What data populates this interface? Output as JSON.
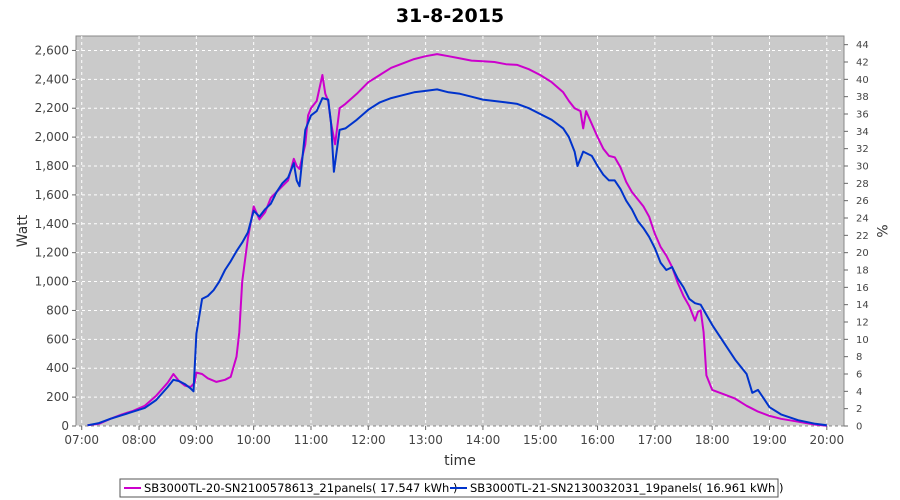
{
  "chart_data": {
    "type": "line",
    "title": "31-8-2015",
    "xlabel": "time",
    "ylabel": "Watt",
    "y2label": "%",
    "xlim": [
      6.9,
      20.3
    ],
    "ylim": [
      0,
      2700
    ],
    "y2lim": [
      0,
      45
    ],
    "x_ticks": [
      {
        "v": 7,
        "label": "07:00"
      },
      {
        "v": 8,
        "label": "08:00"
      },
      {
        "v": 9,
        "label": "09:00"
      },
      {
        "v": 10,
        "label": "10:00"
      },
      {
        "v": 11,
        "label": "11:00"
      },
      {
        "v": 12,
        "label": "12:00"
      },
      {
        "v": 13,
        "label": "13:00"
      },
      {
        "v": 14,
        "label": "14:00"
      },
      {
        "v": 15,
        "label": "15:00"
      },
      {
        "v": 16,
        "label": "16:00"
      },
      {
        "v": 17,
        "label": "17:00"
      },
      {
        "v": 18,
        "label": "18:00"
      },
      {
        "v": 19,
        "label": "19:00"
      },
      {
        "v": 20,
        "label": "20:00"
      }
    ],
    "y_ticks": [
      {
        "v": 0,
        "label": "0"
      },
      {
        "v": 200,
        "label": "200"
      },
      {
        "v": 400,
        "label": "400"
      },
      {
        "v": 600,
        "label": "600"
      },
      {
        "v": 800,
        "label": "800"
      },
      {
        "v": 1000,
        "label": "1,000"
      },
      {
        "v": 1200,
        "label": "1,200"
      },
      {
        "v": 1400,
        "label": "1,400"
      },
      {
        "v": 1600,
        "label": "1,600"
      },
      {
        "v": 1800,
        "label": "1,800"
      },
      {
        "v": 2000,
        "label": "2,000"
      },
      {
        "v": 2200,
        "label": "2,200"
      },
      {
        "v": 2400,
        "label": "2,400"
      },
      {
        "v": 2600,
        "label": "2,600"
      }
    ],
    "y2_ticks": [
      "0",
      "2",
      "4",
      "6",
      "8",
      "10",
      "12",
      "14",
      "16",
      "18",
      "20",
      "22",
      "24",
      "26",
      "28",
      "30",
      "32",
      "34",
      "36",
      "38",
      "40",
      "42",
      "44"
    ],
    "grid": true,
    "legend_position": "bottom",
    "series": [
      {
        "name": "SB3000TL-20-SN2100578613_21panels( 17.547 kWh )",
        "color": "#cc00cc",
        "points": [
          [
            7.1,
            5
          ],
          [
            7.3,
            15
          ],
          [
            7.5,
            50
          ],
          [
            7.7,
            80
          ],
          [
            7.9,
            105
          ],
          [
            8.1,
            140
          ],
          [
            8.3,
            210
          ],
          [
            8.5,
            300
          ],
          [
            8.6,
            360
          ],
          [
            8.7,
            310
          ],
          [
            8.8,
            280
          ],
          [
            8.9,
            270
          ],
          [
            8.97,
            300
          ],
          [
            9.0,
            370
          ],
          [
            9.1,
            360
          ],
          [
            9.2,
            330
          ],
          [
            9.35,
            305
          ],
          [
            9.5,
            320
          ],
          [
            9.6,
            340
          ],
          [
            9.7,
            480
          ],
          [
            9.75,
            650
          ],
          [
            9.8,
            1000
          ],
          [
            9.9,
            1300
          ],
          [
            10.0,
            1520
          ],
          [
            10.1,
            1430
          ],
          [
            10.2,
            1480
          ],
          [
            10.3,
            1580
          ],
          [
            10.4,
            1620
          ],
          [
            10.5,
            1660
          ],
          [
            10.6,
            1700
          ],
          [
            10.7,
            1850
          ],
          [
            10.75,
            1800
          ],
          [
            10.8,
            1780
          ],
          [
            10.9,
            1950
          ],
          [
            10.95,
            2150
          ],
          [
            11.0,
            2200
          ],
          [
            11.1,
            2250
          ],
          [
            11.2,
            2430
          ],
          [
            11.25,
            2300
          ],
          [
            11.3,
            2250
          ],
          [
            11.35,
            2100
          ],
          [
            11.42,
            1950
          ],
          [
            11.5,
            2200
          ],
          [
            11.6,
            2230
          ],
          [
            11.8,
            2300
          ],
          [
            12.0,
            2380
          ],
          [
            12.2,
            2430
          ],
          [
            12.4,
            2480
          ],
          [
            12.6,
            2510
          ],
          [
            12.8,
            2540
          ],
          [
            13.0,
            2560
          ],
          [
            13.2,
            2575
          ],
          [
            13.4,
            2560
          ],
          [
            13.6,
            2545
          ],
          [
            13.8,
            2530
          ],
          [
            14.0,
            2525
          ],
          [
            14.2,
            2520
          ],
          [
            14.4,
            2505
          ],
          [
            14.6,
            2500
          ],
          [
            14.8,
            2470
          ],
          [
            15.0,
            2430
          ],
          [
            15.2,
            2380
          ],
          [
            15.4,
            2310
          ],
          [
            15.5,
            2250
          ],
          [
            15.6,
            2200
          ],
          [
            15.7,
            2180
          ],
          [
            15.75,
            2060
          ],
          [
            15.8,
            2180
          ],
          [
            16.0,
            2000
          ],
          [
            16.1,
            1920
          ],
          [
            16.2,
            1870
          ],
          [
            16.3,
            1860
          ],
          [
            16.4,
            1790
          ],
          [
            16.5,
            1690
          ],
          [
            16.6,
            1620
          ],
          [
            16.7,
            1570
          ],
          [
            16.8,
            1520
          ],
          [
            16.9,
            1450
          ],
          [
            17.0,
            1330
          ],
          [
            17.1,
            1240
          ],
          [
            17.2,
            1180
          ],
          [
            17.3,
            1100
          ],
          [
            17.4,
            990
          ],
          [
            17.5,
            900
          ],
          [
            17.6,
            830
          ],
          [
            17.7,
            730
          ],
          [
            17.75,
            790
          ],
          [
            17.8,
            800
          ],
          [
            17.85,
            650
          ],
          [
            17.9,
            350
          ],
          [
            18.0,
            250
          ],
          [
            18.2,
            220
          ],
          [
            18.4,
            190
          ],
          [
            18.6,
            140
          ],
          [
            18.7,
            120
          ],
          [
            18.8,
            100
          ],
          [
            19.0,
            70
          ],
          [
            19.2,
            50
          ],
          [
            19.5,
            30
          ],
          [
            19.8,
            10
          ],
          [
            20.0,
            2
          ]
        ]
      },
      {
        "name": "SB3000TL-21-SN2130032031_19panels( 16.961 kWh )",
        "color": "#0033cc",
        "points": [
          [
            7.1,
            5
          ],
          [
            7.3,
            20
          ],
          [
            7.5,
            50
          ],
          [
            7.7,
            75
          ],
          [
            7.9,
            100
          ],
          [
            8.1,
            125
          ],
          [
            8.3,
            180
          ],
          [
            8.5,
            270
          ],
          [
            8.6,
            320
          ],
          [
            8.7,
            310
          ],
          [
            8.8,
            290
          ],
          [
            8.9,
            260
          ],
          [
            8.95,
            240
          ],
          [
            9.0,
            640
          ],
          [
            9.1,
            880
          ],
          [
            9.2,
            900
          ],
          [
            9.3,
            940
          ],
          [
            9.4,
            1000
          ],
          [
            9.5,
            1080
          ],
          [
            9.6,
            1140
          ],
          [
            9.7,
            1210
          ],
          [
            9.8,
            1270
          ],
          [
            9.9,
            1340
          ],
          [
            10.0,
            1490
          ],
          [
            10.1,
            1450
          ],
          [
            10.2,
            1500
          ],
          [
            10.3,
            1540
          ],
          [
            10.4,
            1620
          ],
          [
            10.5,
            1680
          ],
          [
            10.6,
            1720
          ],
          [
            10.7,
            1820
          ],
          [
            10.75,
            1700
          ],
          [
            10.8,
            1660
          ],
          [
            10.9,
            2050
          ],
          [
            11.0,
            2150
          ],
          [
            11.1,
            2180
          ],
          [
            11.2,
            2270
          ],
          [
            11.3,
            2260
          ],
          [
            11.35,
            2100
          ],
          [
            11.4,
            1760
          ],
          [
            11.5,
            2050
          ],
          [
            11.6,
            2060
          ],
          [
            11.8,
            2120
          ],
          [
            12.0,
            2190
          ],
          [
            12.2,
            2240
          ],
          [
            12.4,
            2270
          ],
          [
            12.6,
            2290
          ],
          [
            12.8,
            2310
          ],
          [
            13.0,
            2320
          ],
          [
            13.2,
            2330
          ],
          [
            13.4,
            2310
          ],
          [
            13.6,
            2300
          ],
          [
            13.8,
            2280
          ],
          [
            14.0,
            2260
          ],
          [
            14.2,
            2250
          ],
          [
            14.4,
            2240
          ],
          [
            14.6,
            2230
          ],
          [
            14.8,
            2200
          ],
          [
            15.0,
            2160
          ],
          [
            15.2,
            2120
          ],
          [
            15.4,
            2060
          ],
          [
            15.5,
            2000
          ],
          [
            15.6,
            1900
          ],
          [
            15.65,
            1800
          ],
          [
            15.75,
            1900
          ],
          [
            15.9,
            1870
          ],
          [
            16.0,
            1800
          ],
          [
            16.1,
            1740
          ],
          [
            16.2,
            1700
          ],
          [
            16.3,
            1700
          ],
          [
            16.4,
            1640
          ],
          [
            16.5,
            1560
          ],
          [
            16.6,
            1500
          ],
          [
            16.7,
            1420
          ],
          [
            16.8,
            1370
          ],
          [
            16.9,
            1310
          ],
          [
            17.0,
            1230
          ],
          [
            17.1,
            1130
          ],
          [
            17.2,
            1080
          ],
          [
            17.3,
            1100
          ],
          [
            17.4,
            1020
          ],
          [
            17.5,
            960
          ],
          [
            17.6,
            880
          ],
          [
            17.7,
            850
          ],
          [
            17.8,
            840
          ],
          [
            17.9,
            770
          ],
          [
            18.0,
            700
          ],
          [
            18.2,
            580
          ],
          [
            18.4,
            460
          ],
          [
            18.6,
            360
          ],
          [
            18.7,
            230
          ],
          [
            18.8,
            250
          ],
          [
            18.9,
            190
          ],
          [
            19.0,
            130
          ],
          [
            19.2,
            80
          ],
          [
            19.5,
            40
          ],
          [
            19.8,
            15
          ],
          [
            20.0,
            5
          ]
        ]
      }
    ]
  }
}
